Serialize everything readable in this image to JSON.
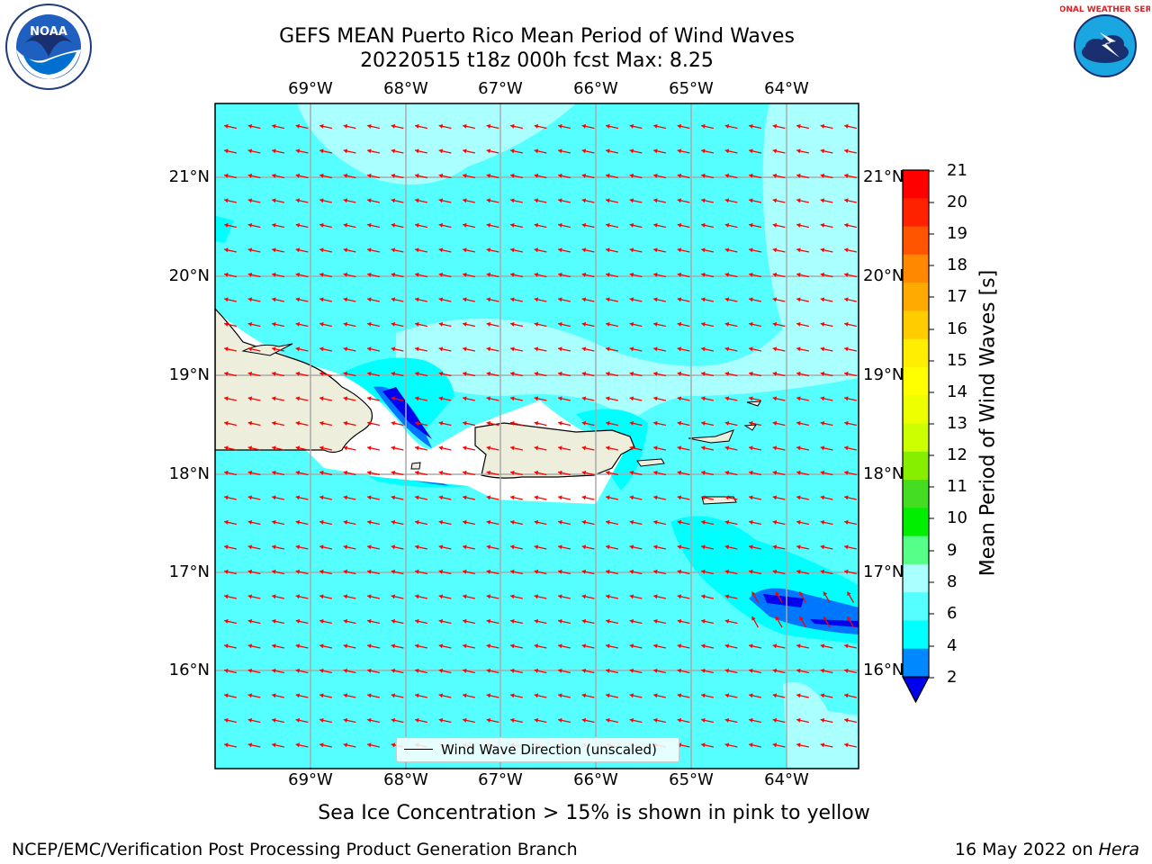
{
  "title": {
    "line1": "GEFS MEAN Puerto Rico Mean Period of Wind Waves",
    "line2": "20220515 t18z 000h fcst   Max: 8.25"
  },
  "logos": {
    "left": {
      "text": "NOAA",
      "icon": "noaa-logo-icon"
    },
    "right": {
      "text": "NATIONAL WEATHER SERVICE",
      "icon": "nws-logo-icon"
    }
  },
  "map": {
    "lon_labels": [
      "69°W",
      "68°W",
      "67°W",
      "66°W",
      "65°W",
      "64°W"
    ],
    "lat_labels": [
      "21°N",
      "20°N",
      "19°N",
      "18°N",
      "17°N",
      "16°N"
    ],
    "legend_label": "Wind Wave Direction (unscaled)",
    "arrow_color": "#ff0000",
    "ocean_color": "#55ffff",
    "land_color": "#eeeedd"
  },
  "colorbar": {
    "label": "Mean Period of Wind Waves [s]",
    "ticks": [
      "21",
      "20",
      "19",
      "18",
      "17",
      "16",
      "15",
      "14",
      "13",
      "12",
      "11",
      "10",
      "9",
      "8",
      "6",
      "4",
      "2"
    ],
    "colors": [
      "#ff0000",
      "#ff2200",
      "#ff5500",
      "#ff8800",
      "#ffaa00",
      "#ffcc00",
      "#ffee00",
      "#ffff00",
      "#eeff00",
      "#ccff00",
      "#88ee00",
      "#44dd22",
      "#00ee00",
      "#55ff88",
      "#aaffff",
      "#55ffff",
      "#00ffff",
      "#0088ff"
    ],
    "under_color": "#0000ee"
  },
  "subtitle": "Sea Ice Concentration > 15% is shown in pink to yellow",
  "footer": {
    "left": "NCEP/EMC/Verification Post Processing Product Generation Branch",
    "right_prefix": "16 May 2022 on ",
    "right_host": "Hera"
  }
}
